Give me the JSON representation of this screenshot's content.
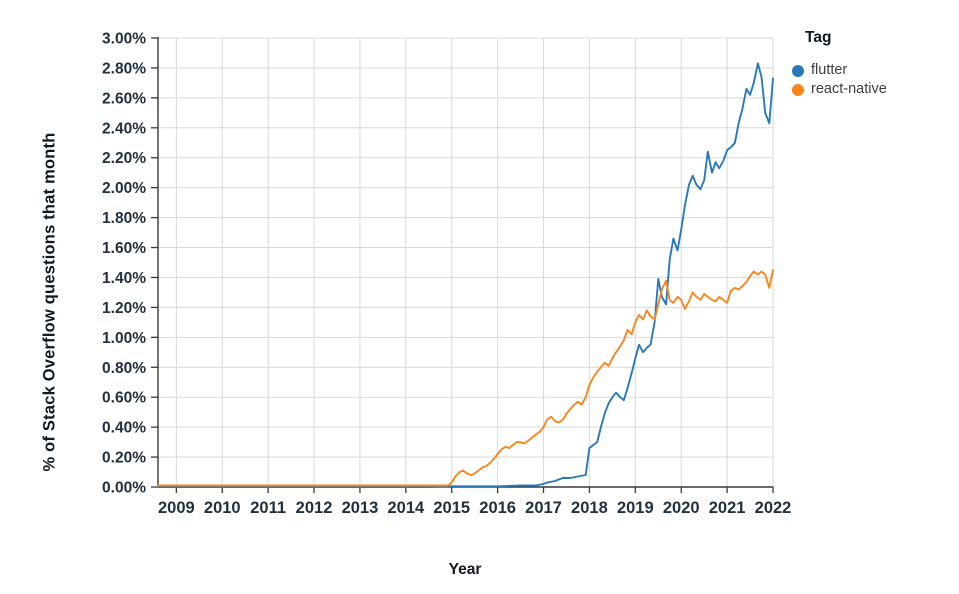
{
  "colors": {
    "background": "#ffffff",
    "gridline": "#d9d9d9",
    "axis": "#3a3a3a",
    "tick_label": "#21303f",
    "title_text": "#101820",
    "legend_text": "#3d3d3d",
    "flutter_blue": "#2879b9",
    "react_native_orange": "#f8861d"
  },
  "chart_data": {
    "type": "line",
    "title": "",
    "xlabel": "Year",
    "ylabel": "% of Stack Overflow questions that month",
    "legend_title": "Tag",
    "legend_position": "outside-top-right",
    "grid": true,
    "x_domain": [
      2008.6,
      2022
    ],
    "y_domain": [
      0,
      3
    ],
    "x_tick_values": [
      2009,
      2010,
      2011,
      2012,
      2013,
      2014,
      2015,
      2016,
      2017,
      2018,
      2019,
      2020,
      2021,
      2022
    ],
    "x_tick_labels": [
      "2009",
      "2010",
      "2011",
      "2012",
      "2013",
      "2014",
      "2015",
      "2016",
      "2017",
      "2018",
      "2019",
      "2020",
      "2021",
      "2022"
    ],
    "y_tick_values": [
      0,
      0.2,
      0.4,
      0.6,
      0.8,
      1.0,
      1.2,
      1.4,
      1.6,
      1.8,
      2.0,
      2.2,
      2.4,
      2.6,
      2.8,
      3.0
    ],
    "y_tick_labels": [
      "0.00%",
      "0.20%",
      "0.40%",
      "0.60%",
      "0.80%",
      "1.00%",
      "1.20%",
      "1.40%",
      "1.60%",
      "1.80%",
      "2.00%",
      "2.20%",
      "2.40%",
      "2.60%",
      "2.80%",
      "3.00%"
    ],
    "series": [
      {
        "name": "flutter",
        "color": "#2879b9",
        "points": [
          [
            2008.6,
            0.0
          ],
          [
            2009.5,
            0.0
          ],
          [
            2010.5,
            0.0
          ],
          [
            2011.5,
            0.0
          ],
          [
            2012.5,
            0.0
          ],
          [
            2013.5,
            0.0
          ],
          [
            2014.5,
            0.0
          ],
          [
            2015.0,
            0.005
          ],
          [
            2015.5,
            0.005
          ],
          [
            2016.0,
            0.005
          ],
          [
            2016.5,
            0.01
          ],
          [
            2016.83,
            0.01
          ],
          [
            2017.0,
            0.02
          ],
          [
            2017.08,
            0.03
          ],
          [
            2017.25,
            0.04
          ],
          [
            2017.42,
            0.06
          ],
          [
            2017.58,
            0.06
          ],
          [
            2017.75,
            0.07
          ],
          [
            2017.92,
            0.08
          ],
          [
            2018.0,
            0.26
          ],
          [
            2018.08,
            0.28
          ],
          [
            2018.17,
            0.3
          ],
          [
            2018.25,
            0.4
          ],
          [
            2018.33,
            0.49
          ],
          [
            2018.42,
            0.56
          ],
          [
            2018.5,
            0.6
          ],
          [
            2018.58,
            0.63
          ],
          [
            2018.67,
            0.6
          ],
          [
            2018.75,
            0.58
          ],
          [
            2018.83,
            0.66
          ],
          [
            2018.92,
            0.76
          ],
          [
            2019.0,
            0.86
          ],
          [
            2019.08,
            0.95
          ],
          [
            2019.17,
            0.9
          ],
          [
            2019.25,
            0.93
          ],
          [
            2019.33,
            0.95
          ],
          [
            2019.42,
            1.1
          ],
          [
            2019.5,
            1.39
          ],
          [
            2019.58,
            1.27
          ],
          [
            2019.67,
            1.22
          ],
          [
            2019.75,
            1.52
          ],
          [
            2019.83,
            1.66
          ],
          [
            2019.92,
            1.58
          ],
          [
            2020.0,
            1.72
          ],
          [
            2020.08,
            1.88
          ],
          [
            2020.17,
            2.02
          ],
          [
            2020.25,
            2.08
          ],
          [
            2020.33,
            2.02
          ],
          [
            2020.42,
            1.99
          ],
          [
            2020.5,
            2.05
          ],
          [
            2020.58,
            2.24
          ],
          [
            2020.67,
            2.1
          ],
          [
            2020.75,
            2.17
          ],
          [
            2020.83,
            2.13
          ],
          [
            2020.92,
            2.18
          ],
          [
            2021.0,
            2.25
          ],
          [
            2021.08,
            2.27
          ],
          [
            2021.17,
            2.3
          ],
          [
            2021.25,
            2.43
          ],
          [
            2021.33,
            2.52
          ],
          [
            2021.42,
            2.66
          ],
          [
            2021.5,
            2.62
          ],
          [
            2021.58,
            2.7
          ],
          [
            2021.67,
            2.83
          ],
          [
            2021.75,
            2.74
          ],
          [
            2021.83,
            2.5
          ],
          [
            2021.92,
            2.43
          ],
          [
            2022.0,
            2.73
          ]
        ]
      },
      {
        "name": "react-native",
        "color": "#f8861d",
        "points": [
          [
            2008.6,
            0.01
          ],
          [
            2009.5,
            0.01
          ],
          [
            2010.5,
            0.01
          ],
          [
            2011.5,
            0.01
          ],
          [
            2012.5,
            0.01
          ],
          [
            2013.5,
            0.01
          ],
          [
            2014.5,
            0.01
          ],
          [
            2014.92,
            0.01
          ],
          [
            2015.0,
            0.03
          ],
          [
            2015.08,
            0.07
          ],
          [
            2015.17,
            0.1
          ],
          [
            2015.25,
            0.11
          ],
          [
            2015.33,
            0.09
          ],
          [
            2015.42,
            0.08
          ],
          [
            2015.5,
            0.09
          ],
          [
            2015.58,
            0.11
          ],
          [
            2015.67,
            0.13
          ],
          [
            2015.75,
            0.14
          ],
          [
            2015.83,
            0.16
          ],
          [
            2015.92,
            0.19
          ],
          [
            2016.0,
            0.22
          ],
          [
            2016.08,
            0.25
          ],
          [
            2016.17,
            0.27
          ],
          [
            2016.25,
            0.26
          ],
          [
            2016.33,
            0.28
          ],
          [
            2016.42,
            0.3
          ],
          [
            2016.5,
            0.3
          ],
          [
            2016.58,
            0.29
          ],
          [
            2016.67,
            0.31
          ],
          [
            2016.75,
            0.33
          ],
          [
            2016.83,
            0.35
          ],
          [
            2016.92,
            0.37
          ],
          [
            2017.0,
            0.4
          ],
          [
            2017.08,
            0.45
          ],
          [
            2017.17,
            0.47
          ],
          [
            2017.25,
            0.44
          ],
          [
            2017.33,
            0.43
          ],
          [
            2017.42,
            0.45
          ],
          [
            2017.5,
            0.49
          ],
          [
            2017.58,
            0.52
          ],
          [
            2017.67,
            0.55
          ],
          [
            2017.75,
            0.57
          ],
          [
            2017.83,
            0.55
          ],
          [
            2017.92,
            0.6
          ],
          [
            2018.0,
            0.68
          ],
          [
            2018.08,
            0.73
          ],
          [
            2018.17,
            0.77
          ],
          [
            2018.25,
            0.8
          ],
          [
            2018.33,
            0.83
          ],
          [
            2018.42,
            0.81
          ],
          [
            2018.5,
            0.86
          ],
          [
            2018.58,
            0.9
          ],
          [
            2018.67,
            0.94
          ],
          [
            2018.75,
            0.98
          ],
          [
            2018.83,
            1.05
          ],
          [
            2018.92,
            1.02
          ],
          [
            2019.0,
            1.1
          ],
          [
            2019.08,
            1.15
          ],
          [
            2019.17,
            1.12
          ],
          [
            2019.25,
            1.18
          ],
          [
            2019.33,
            1.14
          ],
          [
            2019.42,
            1.12
          ],
          [
            2019.5,
            1.22
          ],
          [
            2019.58,
            1.32
          ],
          [
            2019.67,
            1.38
          ],
          [
            2019.75,
            1.25
          ],
          [
            2019.83,
            1.23
          ],
          [
            2019.92,
            1.27
          ],
          [
            2020.0,
            1.25
          ],
          [
            2020.08,
            1.19
          ],
          [
            2020.17,
            1.24
          ],
          [
            2020.25,
            1.3
          ],
          [
            2020.33,
            1.27
          ],
          [
            2020.42,
            1.25
          ],
          [
            2020.5,
            1.29
          ],
          [
            2020.58,
            1.27
          ],
          [
            2020.67,
            1.25
          ],
          [
            2020.75,
            1.24
          ],
          [
            2020.83,
            1.27
          ],
          [
            2020.92,
            1.25
          ],
          [
            2021.0,
            1.23
          ],
          [
            2021.08,
            1.31
          ],
          [
            2021.17,
            1.33
          ],
          [
            2021.25,
            1.32
          ],
          [
            2021.33,
            1.34
          ],
          [
            2021.42,
            1.37
          ],
          [
            2021.5,
            1.41
          ],
          [
            2021.58,
            1.44
          ],
          [
            2021.67,
            1.42
          ],
          [
            2021.75,
            1.44
          ],
          [
            2021.83,
            1.42
          ],
          [
            2021.92,
            1.33
          ],
          [
            2022.0,
            1.45
          ]
        ]
      }
    ]
  }
}
